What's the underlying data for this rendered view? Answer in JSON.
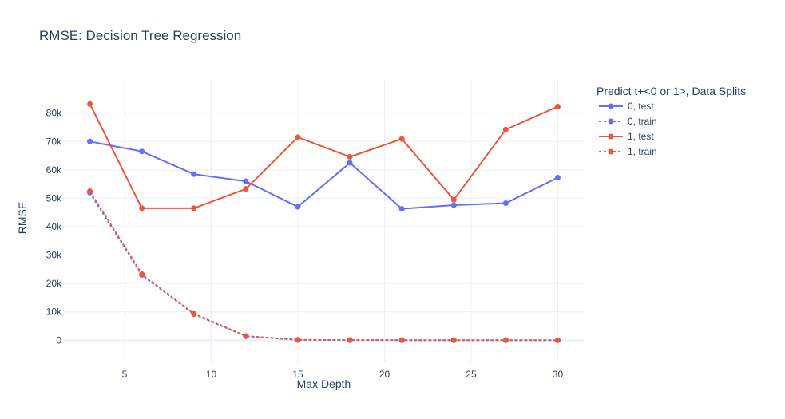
{
  "chart_data": {
    "type": "line",
    "title": "RMSE: Decision Tree Regression",
    "xlabel": "Max Depth",
    "ylabel": "RMSE",
    "x": [
      3,
      6,
      9,
      12,
      15,
      18,
      21,
      24,
      27,
      30
    ],
    "xlim": [
      1.5,
      31.5
    ],
    "ylim": [
      -7500,
      92000
    ],
    "x_ticks": [
      {
        "value": 5,
        "label": "5"
      },
      {
        "value": 10,
        "label": "10"
      },
      {
        "value": 15,
        "label": "15"
      },
      {
        "value": 20,
        "label": "20"
      },
      {
        "value": 25,
        "label": "25"
      },
      {
        "value": 30,
        "label": "30"
      }
    ],
    "y_ticks": [
      {
        "value": 0,
        "label": "0"
      },
      {
        "value": 10000,
        "label": "10k"
      },
      {
        "value": 20000,
        "label": "20k"
      },
      {
        "value": 30000,
        "label": "30k"
      },
      {
        "value": 40000,
        "label": "40k"
      },
      {
        "value": 50000,
        "label": "50k"
      },
      {
        "value": 60000,
        "label": "60k"
      },
      {
        "value": 70000,
        "label": "70k"
      },
      {
        "value": 80000,
        "label": "80k"
      }
    ],
    "grid": true,
    "legend": {
      "title": "Predict t+<0 or 1>, Data Splits",
      "position": "right"
    },
    "series": [
      {
        "name": "0, test",
        "color": "#636efa",
        "dash": "solid",
        "values": [
          70000,
          66500,
          58500,
          56000,
          47000,
          62500,
          46300,
          47600,
          48300,
          57300
        ]
      },
      {
        "name": "0, train",
        "color": "#636efa",
        "dash": "dot",
        "values": [
          52000,
          23000,
          9200,
          1400,
          150,
          50,
          20,
          10,
          5,
          0
        ]
      },
      {
        "name": "1, test",
        "color": "#ef553b",
        "dash": "solid",
        "values": [
          83200,
          46500,
          46500,
          53300,
          71500,
          64600,
          70900,
          49500,
          74200,
          82300
        ]
      },
      {
        "name": "1, train",
        "color": "#ef553b",
        "dash": "dot",
        "values": [
          52500,
          23300,
          9300,
          1500,
          150,
          50,
          20,
          10,
          5,
          0
        ]
      }
    ]
  }
}
